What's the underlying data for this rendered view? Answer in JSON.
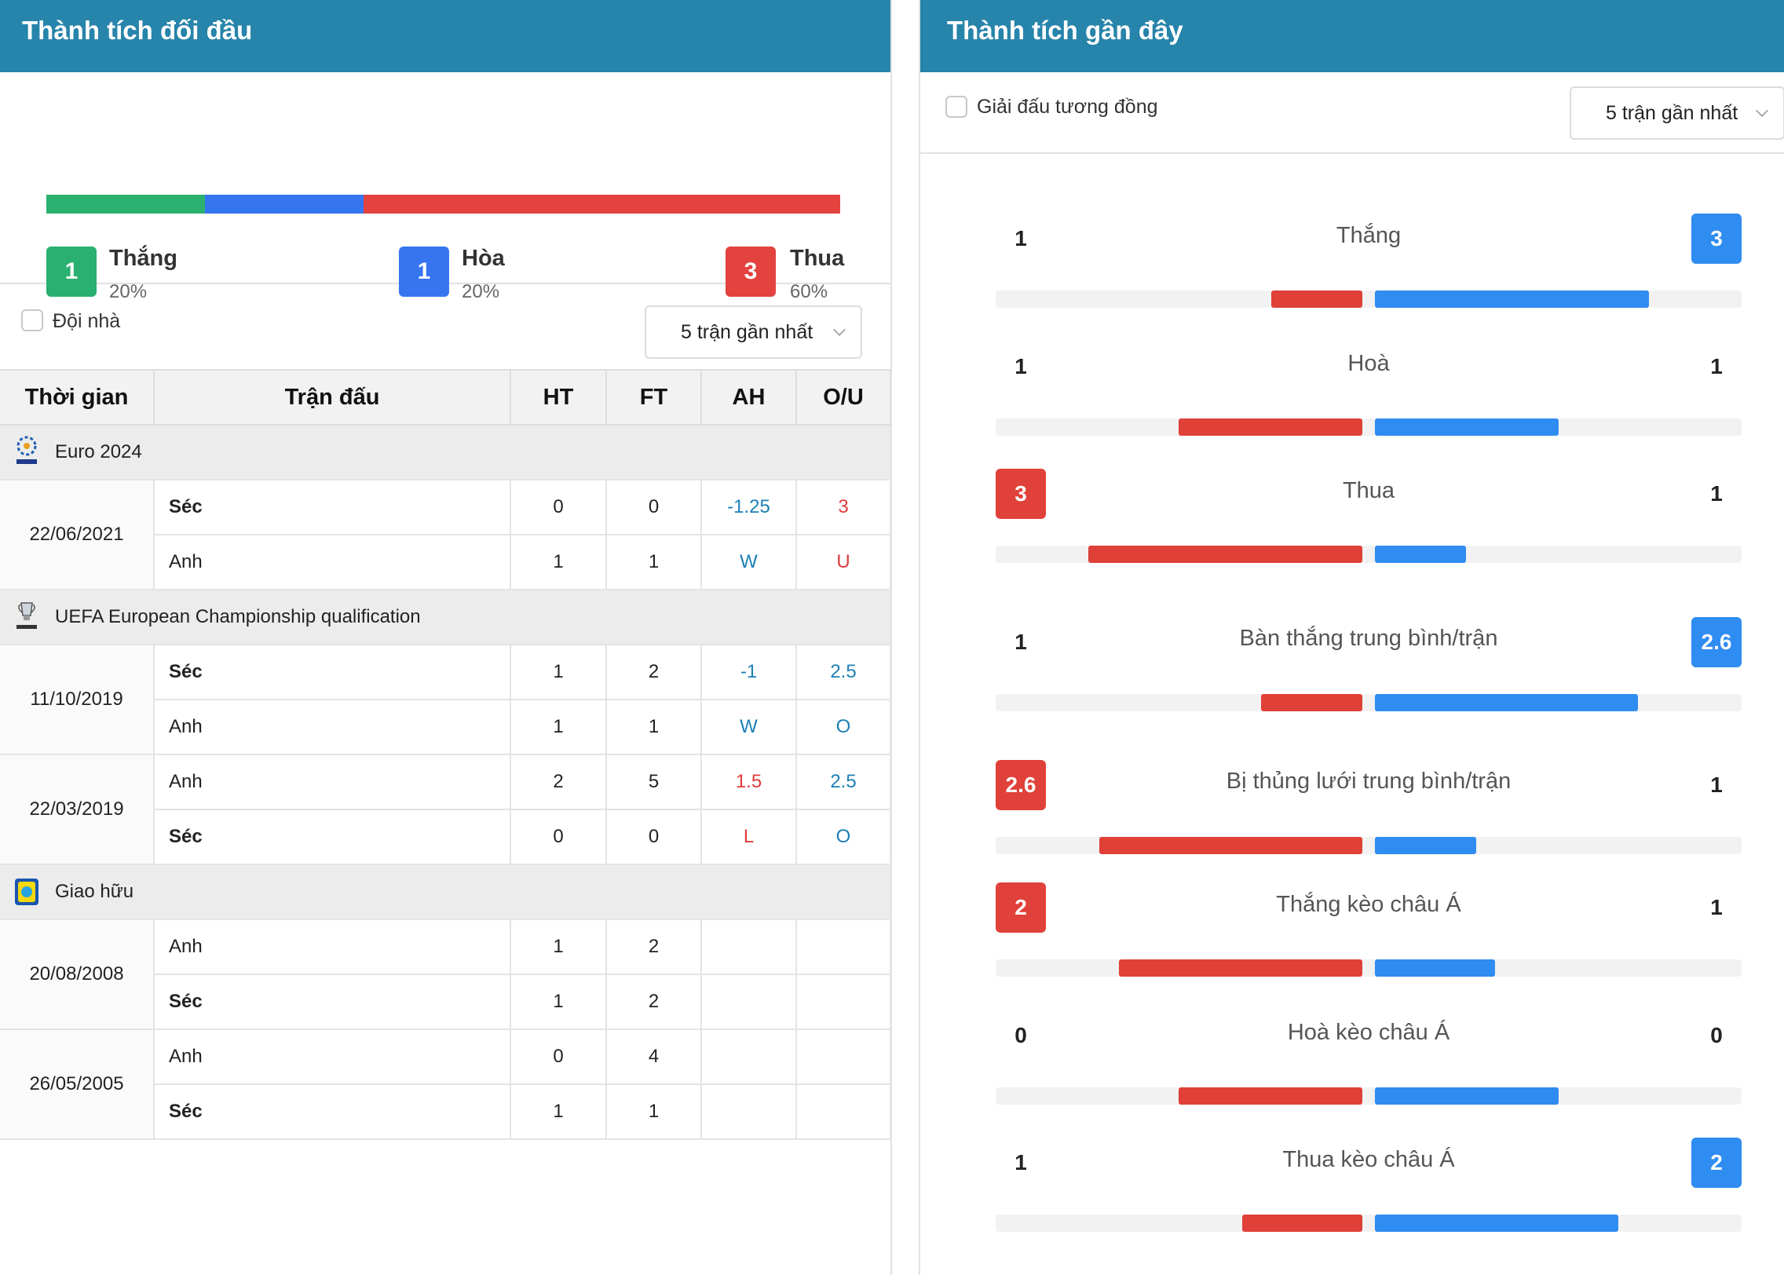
{
  "colors": {
    "header": "#2784aa",
    "win": "#2ab06f",
    "draw": "#3575f0",
    "loss": "#e3423f",
    "bar_red": "#df4038",
    "bar_blue": "#2f8cf0"
  },
  "left": {
    "title": "Thành tích đối đầu",
    "summary": {
      "win": {
        "count": "1",
        "label": "Thắng",
        "pct": "20%",
        "share": 0.2
      },
      "draw": {
        "count": "1",
        "label": "Hòa",
        "pct": "20%",
        "share": 0.2
      },
      "loss": {
        "count": "3",
        "label": "Thua",
        "pct": "60%",
        "share": 0.6
      }
    },
    "filter": {
      "checkbox_label": "Đội nhà",
      "select_value": "5 trận gần nhất"
    },
    "table": {
      "headers": [
        "Thời gian",
        "Trận đấu",
        "HT",
        "FT",
        "AH",
        "O/U"
      ],
      "groups": [
        {
          "name": "Euro 2024",
          "logo": "euro-2024-logo",
          "matches": [
            {
              "date": "22/06/2021",
              "rows": [
                {
                  "team": "Séc",
                  "bold": true,
                  "ht": "0",
                  "ft": "0",
                  "ah": "-1.25",
                  "ah_color": "blue",
                  "ou": "3",
                  "ou_color": "red"
                },
                {
                  "team": "Anh",
                  "bold": false,
                  "ht": "1",
                  "ft": "1",
                  "ah": "W",
                  "ah_color": "blue",
                  "ou": "U",
                  "ou_color": "red"
                }
              ]
            }
          ]
        },
        {
          "name": "UEFA European Championship qualification",
          "logo": "uefa-euro-qualifiers-logo",
          "matches": [
            {
              "date": "11/10/2019",
              "rows": [
                {
                  "team": "Séc",
                  "bold": true,
                  "ht": "1",
                  "ft": "2",
                  "ah": "-1",
                  "ah_color": "blue",
                  "ou": "2.5",
                  "ou_color": "blue"
                },
                {
                  "team": "Anh",
                  "bold": false,
                  "ht": "1",
                  "ft": "1",
                  "ah": "W",
                  "ah_color": "blue",
                  "ou": "O",
                  "ou_color": "blue"
                }
              ]
            },
            {
              "date": "22/03/2019",
              "rows": [
                {
                  "team": "Anh",
                  "bold": false,
                  "ht": "2",
                  "ft": "5",
                  "ah": "1.5",
                  "ah_color": "red",
                  "ou": "2.5",
                  "ou_color": "blue"
                },
                {
                  "team": "Séc",
                  "bold": true,
                  "ht": "0",
                  "ft": "0",
                  "ah": "L",
                  "ah_color": "red",
                  "ou": "O",
                  "ou_color": "blue"
                }
              ]
            }
          ]
        },
        {
          "name": "Giao hữu",
          "logo": "friendly-logo",
          "matches": [
            {
              "date": "20/08/2008",
              "rows": [
                {
                  "team": "Anh",
                  "bold": false,
                  "ht": "1",
                  "ft": "2",
                  "ah": "",
                  "ah_color": "blue",
                  "ou": "",
                  "ou_color": "blue"
                },
                {
                  "team": "Séc",
                  "bold": true,
                  "ht": "1",
                  "ft": "2",
                  "ah": "",
                  "ah_color": "blue",
                  "ou": "",
                  "ou_color": "blue"
                }
              ]
            },
            {
              "date": "26/05/2005",
              "rows": [
                {
                  "team": "Anh",
                  "bold": false,
                  "ht": "0",
                  "ft": "4",
                  "ah": "",
                  "ah_color": "blue",
                  "ou": "",
                  "ou_color": "blue"
                },
                {
                  "team": "Séc",
                  "bold": true,
                  "ht": "1",
                  "ft": "1",
                  "ah": "",
                  "ah_color": "blue",
                  "ou": "",
                  "ou_color": "blue"
                }
              ]
            }
          ]
        }
      ]
    }
  },
  "right": {
    "title": "Thành tích gần đây",
    "filter": {
      "checkbox_label": "Giải đấu tương đồng",
      "select_value": "5 trận gần nhất"
    },
    "stats": [
      {
        "label": "Thắng",
        "left": "1",
        "right": "3",
        "left_hl": false,
        "right_hl": true,
        "left_ratio": 0.333,
        "right_ratio": 1.0
      },
      {
        "label": "Hoà",
        "left": "1",
        "right": "1",
        "left_hl": false,
        "right_hl": false,
        "left_ratio": 0.67,
        "right_ratio": 0.67
      },
      {
        "label": "Thua",
        "left": "3",
        "right": "1",
        "left_hl": true,
        "right_hl": false,
        "left_ratio": 1.0,
        "right_ratio": 0.333
      },
      {
        "label": "Bàn thắng trung bình/trận",
        "left": "1",
        "right": "2.6",
        "left_hl": false,
        "right_hl": true,
        "left_ratio": 0.37,
        "right_ratio": 0.96
      },
      {
        "label": "Bị thủng lưới trung bình/trận",
        "left": "2.6",
        "right": "1",
        "left_hl": true,
        "right_hl": false,
        "left_ratio": 0.96,
        "right_ratio": 0.37
      },
      {
        "label": "Thắng kèo châu Á",
        "left": "2",
        "right": "1",
        "left_hl": true,
        "right_hl": false,
        "left_ratio": 0.89,
        "right_ratio": 0.44
      },
      {
        "label": "Hoà kèo châu Á",
        "left": "0",
        "right": "0",
        "left_hl": false,
        "right_hl": false,
        "left_ratio": 0.67,
        "right_ratio": 0.67
      },
      {
        "label": "Thua kèo châu Á",
        "left": "1",
        "right": "2",
        "left_hl": false,
        "right_hl": true,
        "left_ratio": 0.44,
        "right_ratio": 0.89
      }
    ]
  }
}
